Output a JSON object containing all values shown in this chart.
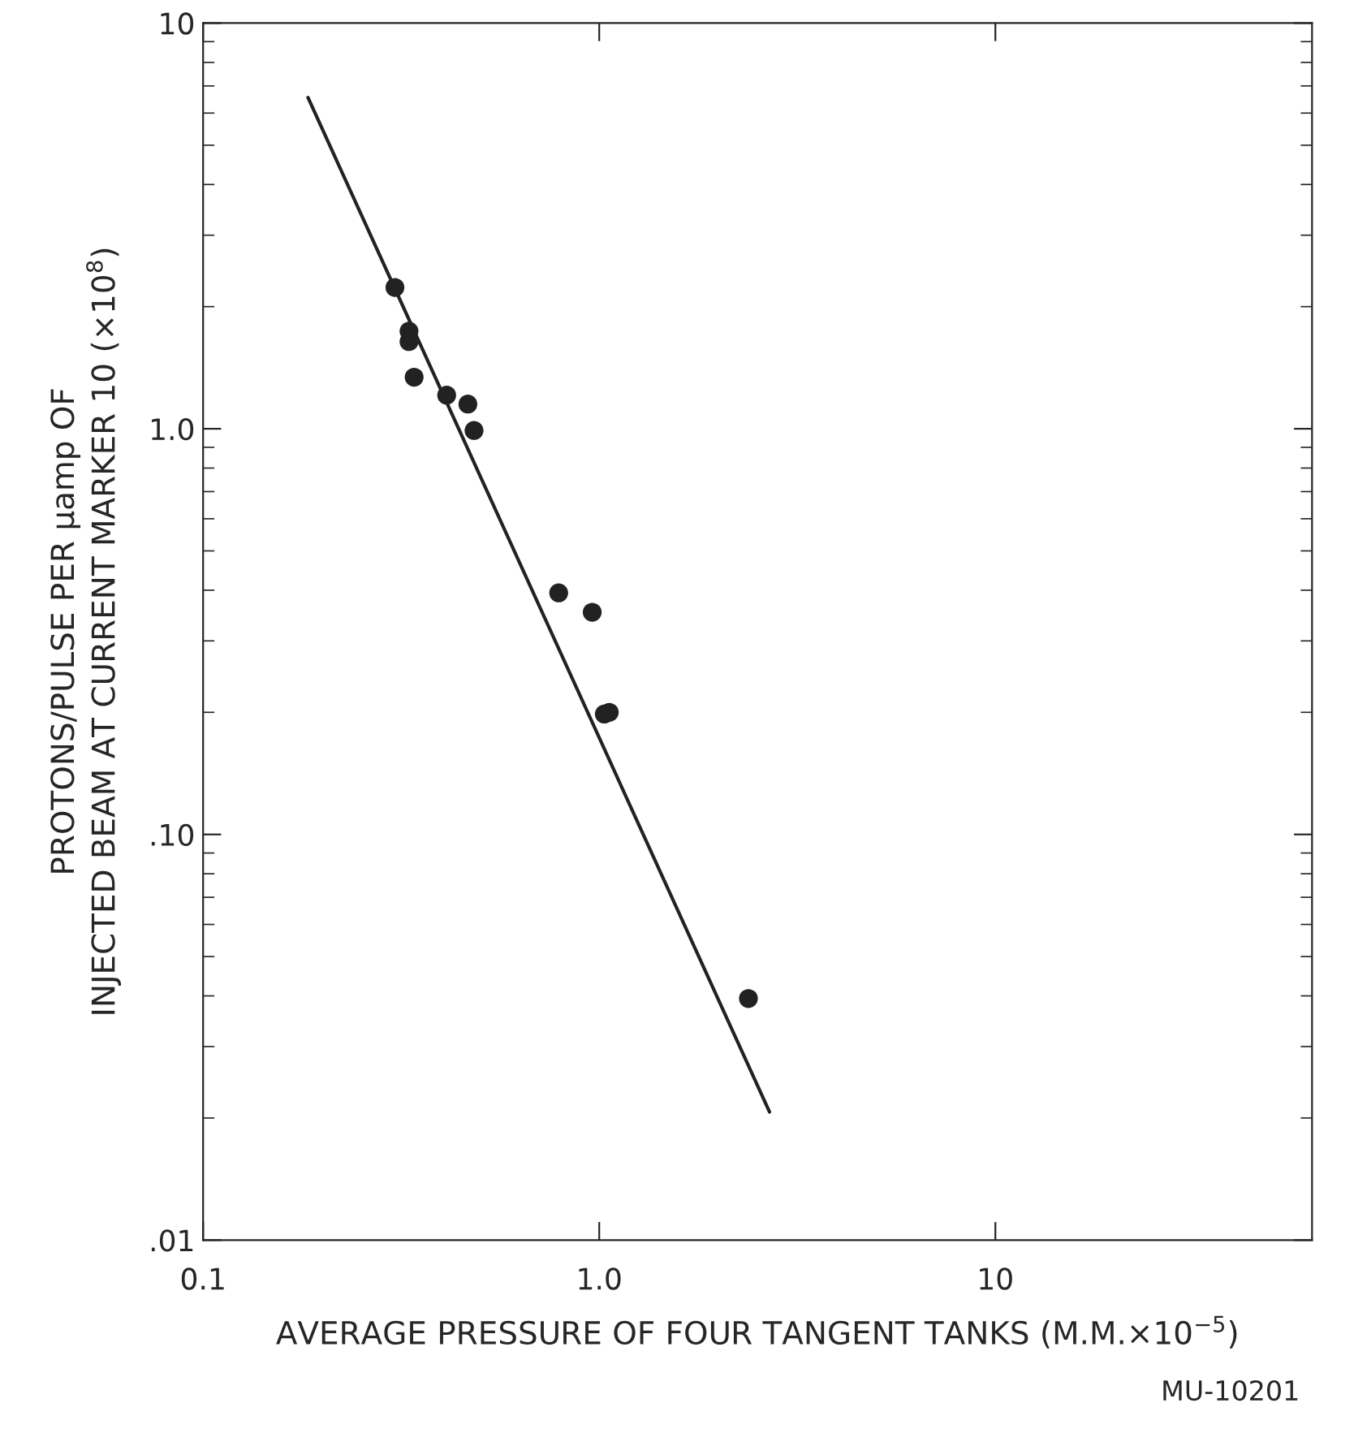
{
  "chart_data": {
    "type": "scatter",
    "xlabel": "AVERAGE PRESSURE OF FOUR TANGENT TANKS (M.M.×10$^{−5}$)",
    "ylabel": "PROTONS/PULSE PER μamp OF\nINJECTED BEAM AT CURRENT MARKER 10 (×10$^{8}$)",
    "series": [
      {
        "marker": "circle",
        "color": "#222222",
        "x": [
          0.305,
          0.331,
          0.331,
          0.341,
          0.412,
          0.466,
          0.483,
          0.79,
          0.96,
          1.03,
          1.06,
          2.38
        ],
        "values": [
          2.23,
          1.74,
          1.64,
          1.34,
          1.21,
          1.15,
          0.99,
          0.394,
          0.353,
          0.198,
          0.2,
          0.0394
        ]
      },
      {
        "type": "line",
        "color": "#222222",
        "x": [
          0.184,
          2.69
        ],
        "values": [
          6.55,
          0.0207
        ]
      }
    ],
    "log": "xy",
    "xlim": [
      0.1,
      63
    ],
    "ylim": [
      0.01,
      10
    ],
    "xticks": [
      {
        "value": 0.1,
        "label": "0.1"
      },
      {
        "value": 1,
        "label": "1.0"
      },
      {
        "value": 10,
        "label": "10"
      }
    ],
    "yticks": [
      {
        "value": 0.01,
        "label": ".01"
      },
      {
        "value": 0.1,
        "label": ".10"
      },
      {
        "value": 1,
        "label": "1.0"
      },
      {
        "value": 10,
        "label": "10"
      }
    ],
    "grid": false,
    "annotations": [
      "MU-10201"
    ]
  }
}
